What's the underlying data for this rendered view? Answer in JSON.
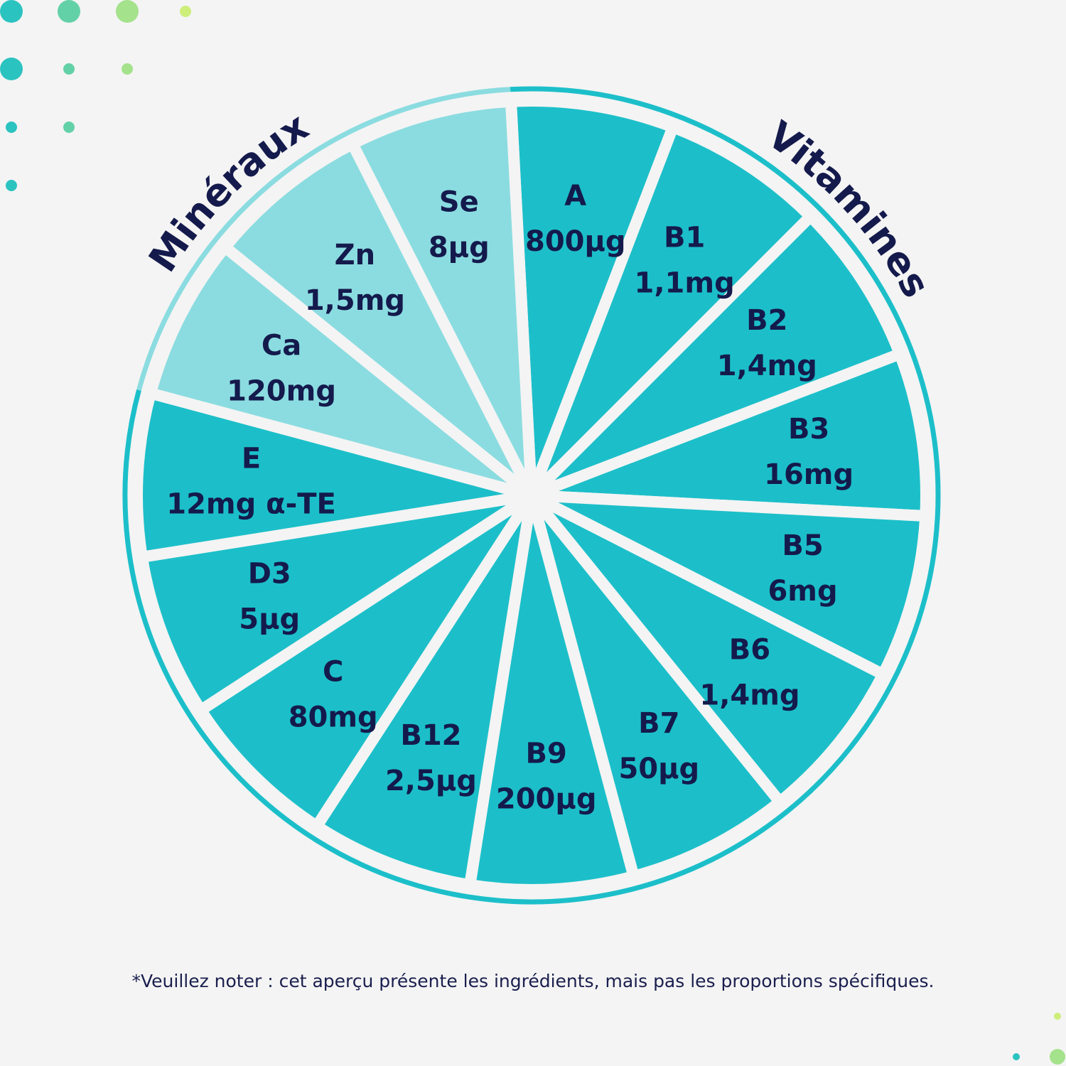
{
  "colors": {
    "background": "#f4f4f4",
    "vitamin_fill": "#1cbfc9",
    "mineral_fill": "#8bdce0",
    "text": "#141a4c",
    "separator": "#f4f4f4",
    "dots": [
      "#2bc3c0",
      "#63d1a8",
      "#a4e28c",
      "#cdee7a"
    ]
  },
  "groups": {
    "minerals_label": "Minéraux",
    "vitamins_label": "Vitamines"
  },
  "segments": [
    {
      "name": "A",
      "amount": "800µg",
      "group": "vitamin"
    },
    {
      "name": "B1",
      "amount": "1,1mg",
      "group": "vitamin"
    },
    {
      "name": "B2",
      "amount": "1,4mg",
      "group": "vitamin"
    },
    {
      "name": "B3",
      "amount": "16mg",
      "group": "vitamin"
    },
    {
      "name": "B5",
      "amount": "6mg",
      "group": "vitamin"
    },
    {
      "name": "B6",
      "amount": "1,4mg",
      "group": "vitamin"
    },
    {
      "name": "B7",
      "amount": "50µg",
      "group": "vitamin"
    },
    {
      "name": "B9",
      "amount": "200µg",
      "group": "vitamin"
    },
    {
      "name": "B12",
      "amount": "2,5µg",
      "group": "vitamin"
    },
    {
      "name": "C",
      "amount": "80mg",
      "group": "vitamin"
    },
    {
      "name": "D3",
      "amount": "5µg",
      "group": "vitamin"
    },
    {
      "name": "E",
      "amount": "12mg α-TE",
      "group": "vitamin"
    },
    {
      "name": "Ca",
      "amount": "120mg",
      "group": "mineral"
    },
    {
      "name": "Zn",
      "amount": "1,5mg",
      "group": "mineral"
    },
    {
      "name": "Se",
      "amount": "8µg",
      "group": "mineral"
    }
  ],
  "footnote": "*Veuillez noter : cet aperçu présente les ingrédients, mais pas les proportions spécifiques."
}
